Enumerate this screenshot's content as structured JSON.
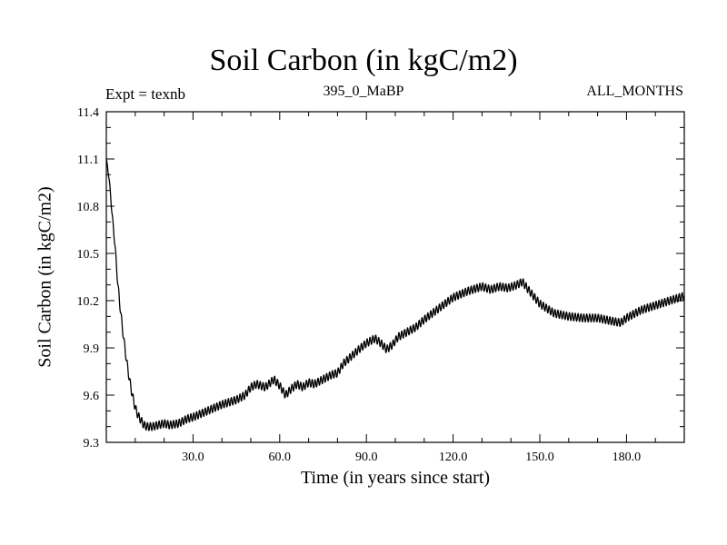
{
  "chart_data": {
    "type": "line",
    "title": "Soil Carbon (in kgC/m2)",
    "subtitle_left": "Expt = texnb",
    "subtitle_center": "395_0_MaBP",
    "subtitle_right": "ALL_MONTHS",
    "xlabel": "Time (in years since start)",
    "ylabel": "Soil Carbon (in kgC/m2)",
    "xlim": [
      0,
      200
    ],
    "ylim": [
      9.3,
      11.4
    ],
    "xticks": [
      30,
      60,
      90,
      120,
      150,
      180
    ],
    "xtick_labels": [
      "30.0",
      "60.0",
      "90.0",
      "120.0",
      "150.0",
      "180.0"
    ],
    "yticks": [
      9.3,
      9.6,
      9.9,
      10.2,
      10.5,
      10.8,
      11.1,
      11.4
    ],
    "ytick_labels": [
      "9.3",
      "9.6",
      "9.9",
      "10.2",
      "10.5",
      "10.8",
      "11.1",
      "11.4"
    ],
    "seasonal_amplitude": 0.025,
    "series": [
      {
        "name": "Soil Carbon",
        "color": "#000000",
        "x": [
          0,
          1,
          2,
          3,
          4,
          5,
          6,
          7,
          8,
          9,
          10,
          11,
          12,
          13,
          14,
          16,
          18,
          20,
          22,
          25,
          28,
          30,
          35,
          40,
          45,
          48,
          50,
          52,
          55,
          58,
          60,
          62,
          64,
          66,
          68,
          70,
          72,
          75,
          78,
          80,
          82,
          85,
          88,
          90,
          93,
          95,
          97,
          99,
          101,
          104,
          107,
          110,
          115,
          120,
          125,
          130,
          133,
          136,
          139,
          142,
          144,
          146,
          150,
          155,
          160,
          165,
          170,
          175,
          178,
          180,
          185,
          190,
          195,
          200
        ],
        "values": [
          11.1,
          10.97,
          10.75,
          10.55,
          10.3,
          10.12,
          9.96,
          9.82,
          9.7,
          9.6,
          9.52,
          9.47,
          9.44,
          9.41,
          9.4,
          9.4,
          9.41,
          9.42,
          9.41,
          9.42,
          9.45,
          9.46,
          9.5,
          9.54,
          9.57,
          9.6,
          9.65,
          9.67,
          9.65,
          9.7,
          9.66,
          9.6,
          9.64,
          9.67,
          9.65,
          9.68,
          9.67,
          9.7,
          9.73,
          9.74,
          9.8,
          9.85,
          9.9,
          9.93,
          9.96,
          9.93,
          9.89,
          9.92,
          9.97,
          10.0,
          10.03,
          10.08,
          10.15,
          10.22,
          10.26,
          10.29,
          10.27,
          10.29,
          10.28,
          10.3,
          10.32,
          10.27,
          10.18,
          10.12,
          10.1,
          10.09,
          10.09,
          10.07,
          10.06,
          10.09,
          10.14,
          10.17,
          10.2,
          10.23
        ]
      }
    ]
  }
}
